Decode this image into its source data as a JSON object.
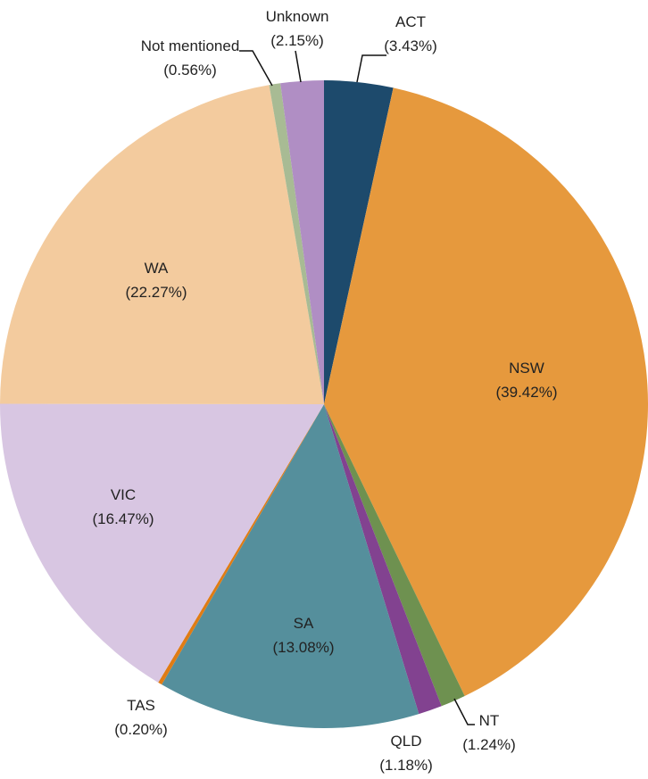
{
  "chart_data": {
    "type": "pie",
    "title": "",
    "start": "top",
    "direction": "clockwise",
    "slices": [
      {
        "label": "ACT",
        "value": 3.43,
        "display": "(3.43%)",
        "color": "#1d4a6c"
      },
      {
        "label": "NSW",
        "value": 39.42,
        "display": "(39.42%)",
        "color": "#e6993d"
      },
      {
        "label": "NT",
        "value": 1.24,
        "display": "(1.24%)",
        "color": "#6e9150"
      },
      {
        "label": "QLD",
        "value": 1.18,
        "display": "(1.18%)",
        "color": "#824290"
      },
      {
        "label": "SA",
        "value": 13.08,
        "display": "(13.08%)",
        "color": "#558f9c"
      },
      {
        "label": "TAS",
        "value": 0.2,
        "display": "(0.20%)",
        "color": "#e07c14"
      },
      {
        "label": "VIC",
        "value": 16.47,
        "display": "(16.47%)",
        "color": "#d8c6e2"
      },
      {
        "label": "WA",
        "value": 22.27,
        "display": "(22.27%)",
        "color": "#f3cb9e"
      },
      {
        "label": "Not mentioned",
        "value": 0.56,
        "display": "(0.56%)",
        "color": "#a8bb94"
      },
      {
        "label": "Unknown",
        "value": 2.15,
        "display": "(2.15%)",
        "color": "#b08ec4"
      }
    ]
  }
}
